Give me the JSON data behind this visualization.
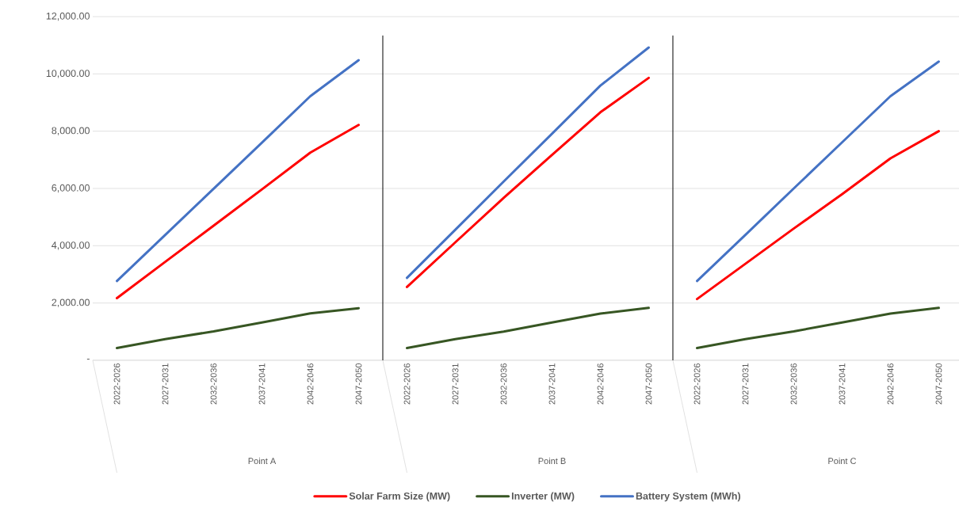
{
  "chart_data": {
    "type": "line",
    "categories": [
      "2022-2026",
      "2027-2031",
      "2032-2036",
      "2037-2041",
      "2042-2046",
      "2047-2050",
      "2022-2026",
      "2027-2031",
      "2032-2036",
      "2037-2041",
      "2042-2046",
      "2047-2050",
      "2022-2026",
      "2027-2031",
      "2032-2036",
      "2037-2041",
      "2042-2046",
      "2047-2050"
    ],
    "series": [
      {
        "name": "Solar Farm Size (MW)",
        "color": "#ff0000",
        "values": [
          2170,
          3440,
          4700,
          5970,
          7250,
          8220,
          2560,
          4120,
          5670,
          7170,
          8660,
          9860,
          2140,
          3370,
          4600,
          5800,
          7050,
          8000
        ]
      },
      {
        "name": "Inverter (MW)",
        "color": "#375623",
        "values": [
          430,
          740,
          1010,
          1320,
          1640,
          1820,
          430,
          740,
          1000,
          1320,
          1630,
          1830,
          430,
          740,
          1010,
          1320,
          1630,
          1830
        ]
      },
      {
        "name": "Battery System (MWh)",
        "color": "#4472c4",
        "values": [
          2770,
          4380,
          5990,
          7600,
          9220,
          10480,
          2880,
          4560,
          6240,
          7910,
          9590,
          10920,
          2770,
          4380,
          6000,
          7610,
          9220,
          10430
        ]
      }
    ],
    "ylim": [
      0,
      12000
    ],
    "yticks": [
      {
        "value": 0,
        "label": "-"
      },
      {
        "value": 2000,
        "label": "2,000.00"
      },
      {
        "value": 4000,
        "label": "4,000.00"
      },
      {
        "value": 6000,
        "label": "6,000.00"
      },
      {
        "value": 8000,
        "label": "8,000.00"
      },
      {
        "value": 10000,
        "label": "10,000.00"
      },
      {
        "value": 12000,
        "label": "12,000.00"
      }
    ],
    "annotations": [
      "Point A",
      "Point B",
      "Point C"
    ],
    "grid": "y",
    "legend": "bottom",
    "marker": "none",
    "line_style": "solid"
  }
}
